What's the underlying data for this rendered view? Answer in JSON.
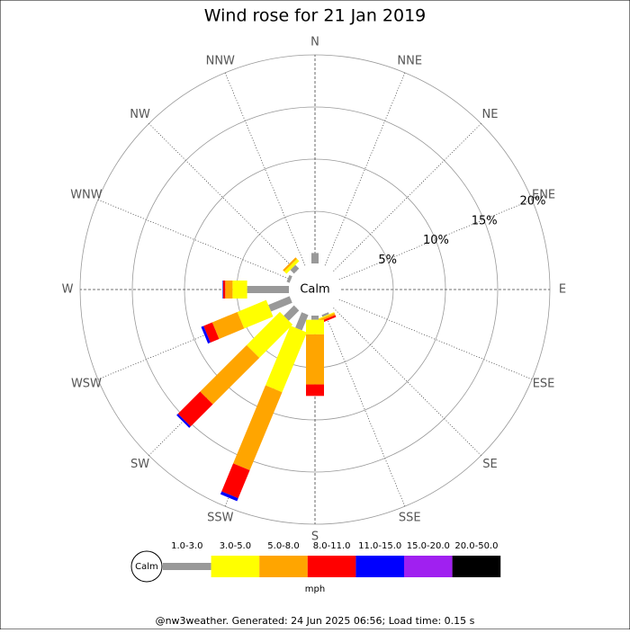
{
  "chart_data": {
    "type": "windrose",
    "title": "Wind rose for 21 Jan 2019",
    "directions": [
      "N",
      "NNE",
      "NE",
      "ENE",
      "E",
      "ESE",
      "SE",
      "SSE",
      "S",
      "SSW",
      "SW",
      "WSW",
      "W",
      "WNW",
      "NW",
      "NNW"
    ],
    "calm_label": "Calm",
    "unit": "mph",
    "rlim": [
      0,
      20
    ],
    "rticks": [
      {
        "value": 5,
        "label": "5%"
      },
      {
        "value": 10,
        "label": "10%"
      },
      {
        "value": 15,
        "label": "15%"
      },
      {
        "value": 20,
        "label": "20%"
      }
    ],
    "series": [
      {
        "name": "1.0-3.0",
        "color": "#999999",
        "values": [
          1.0,
          0,
          0,
          0,
          0,
          0,
          0,
          0.2,
          0.4,
          1.6,
          1.4,
          2.2,
          4.0,
          0.3,
          0.5,
          0
        ]
      },
      {
        "name": "3.0-5.0",
        "color": "#ffff00",
        "values": [
          0,
          0,
          0,
          0,
          0,
          0,
          0,
          0.1,
          1.4,
          6.2,
          4.5,
          3.0,
          1.4,
          0,
          0.3,
          0
        ]
      },
      {
        "name": "5.0-8.0",
        "color": "#ffa500",
        "values": [
          0,
          0,
          0,
          0,
          0,
          0,
          0,
          0.2,
          4.8,
          8.1,
          6.3,
          2.6,
          0.7,
          0,
          0.2,
          0
        ]
      },
      {
        "name": "8.0-11.0",
        "color": "#ff0000",
        "values": [
          0,
          0,
          0,
          0,
          0,
          0,
          0,
          0.2,
          1.1,
          2.9,
          3.0,
          0.9,
          0.2,
          0,
          0,
          0
        ]
      },
      {
        "name": "11.0-15.0",
        "color": "#0000ff",
        "values": [
          0,
          0,
          0,
          0,
          0,
          0,
          0,
          0,
          0,
          0.3,
          0.2,
          0.25,
          0.05,
          0,
          0,
          0
        ]
      },
      {
        "name": "15.0-20.0",
        "color": "#a020f0",
        "values": [
          0,
          0,
          0,
          0,
          0,
          0,
          0,
          0,
          0,
          0,
          0,
          0,
          0,
          0,
          0,
          0
        ]
      },
      {
        "name": "20.0-50.0",
        "color": "#000000",
        "values": [
          0,
          0,
          0,
          0,
          0,
          0,
          0,
          0,
          0,
          0,
          0,
          0,
          0,
          0,
          0,
          0
        ]
      }
    ]
  },
  "footer": "@nw3weather. Generated: 24 Jun 2025 06:56; Load time: 0.15 s"
}
